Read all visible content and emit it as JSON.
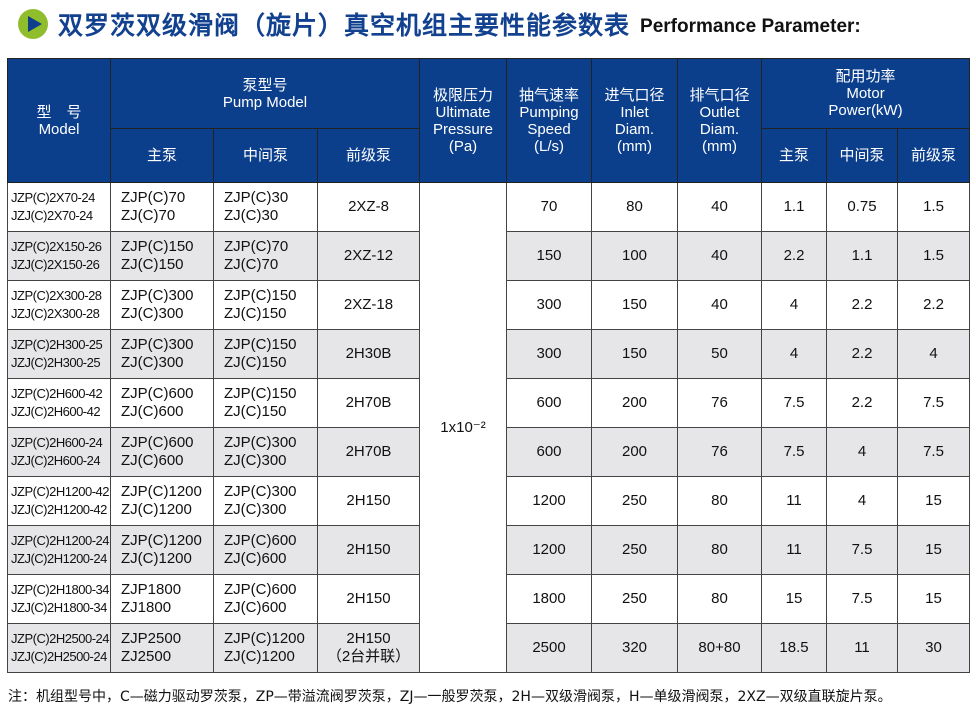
{
  "title": {
    "cn": "双罗茨双级滑阀（旋片）真空机组主要性能参数表",
    "en": "Performance Parameter:",
    "icon": "play-circle-icon"
  },
  "header": {
    "model": {
      "cn": "型　号",
      "en": "Model"
    },
    "pump_model": {
      "cn": "泵型号",
      "en": "Pump Model"
    },
    "main": "主泵",
    "mid": "中间泵",
    "fore": "前级泵",
    "pressure": {
      "cn": "极限压力",
      "en": "Ultimate",
      "en2": "Pressure",
      "unit": "(Pa)"
    },
    "speed": {
      "cn": "抽气速率",
      "en": "Pumping",
      "en2": "Speed",
      "unit": "(L/s)"
    },
    "inlet": {
      "cn": "进气口径",
      "en": "Inlet",
      "en2": "Diam.",
      "unit": "(mm)"
    },
    "outlet": {
      "cn": "排气口径",
      "en": "Outlet",
      "en2": "Diam.",
      "unit": "(mm)"
    },
    "power": {
      "cn": "配用功率",
      "en": "Motor",
      "en2": "Power(kW)"
    }
  },
  "pressure_value": "1x10⁻²",
  "rows": [
    {
      "model": [
        "JZP(C)2X70-24",
        "JZJ(C)2X70-24"
      ],
      "main": [
        "ZJP(C)70",
        "ZJ(C)70"
      ],
      "mid": [
        "ZJP(C)30",
        "ZJ(C)30"
      ],
      "fore": [
        "2XZ-8",
        ""
      ],
      "speed": "70",
      "inlet": "80",
      "outlet": "40",
      "p1": "1.1",
      "p2": "0.75",
      "p3": "1.5"
    },
    {
      "model": [
        "JZP(C)2X150-26",
        "JZJ(C)2X150-26"
      ],
      "main": [
        "ZJP(C)150",
        "ZJ(C)150"
      ],
      "mid": [
        "ZJP(C)70",
        "ZJ(C)70"
      ],
      "fore": [
        "2XZ-12",
        ""
      ],
      "speed": "150",
      "inlet": "100",
      "outlet": "40",
      "p1": "2.2",
      "p2": "1.1",
      "p3": "1.5"
    },
    {
      "model": [
        "JZP(C)2X300-28",
        "JZJ(C)2X300-28"
      ],
      "main": [
        "ZJP(C)300",
        "ZJ(C)300"
      ],
      "mid": [
        "ZJP(C)150",
        "ZJ(C)150"
      ],
      "fore": [
        "2XZ-18",
        ""
      ],
      "speed": "300",
      "inlet": "150",
      "outlet": "40",
      "p1": "4",
      "p2": "2.2",
      "p3": "2.2"
    },
    {
      "model": [
        "JZP(C)2H300-25",
        "JZJ(C)2H300-25"
      ],
      "main": [
        "ZJP(C)300",
        "ZJ(C)300"
      ],
      "mid": [
        "ZJP(C)150",
        "ZJ(C)150"
      ],
      "fore": [
        "2H30B",
        ""
      ],
      "speed": "300",
      "inlet": "150",
      "outlet": "50",
      "p1": "4",
      "p2": "2.2",
      "p3": "4"
    },
    {
      "model": [
        "JZP(C)2H600-42",
        "JZJ(C)2H600-42"
      ],
      "main": [
        "ZJP(C)600",
        "ZJ(C)600"
      ],
      "mid": [
        "ZJP(C)150",
        "ZJ(C)150"
      ],
      "fore": [
        "2H70B",
        ""
      ],
      "speed": "600",
      "inlet": "200",
      "outlet": "76",
      "p1": "7.5",
      "p2": "2.2",
      "p3": "7.5"
    },
    {
      "model": [
        "JZP(C)2H600-24",
        "JZJ(C)2H600-24"
      ],
      "main": [
        "ZJP(C)600",
        "ZJ(C)600"
      ],
      "mid": [
        "ZJP(C)300",
        "ZJ(C)300"
      ],
      "fore": [
        "2H70B",
        ""
      ],
      "speed": "600",
      "inlet": "200",
      "outlet": "76",
      "p1": "7.5",
      "p2": "4",
      "p3": "7.5"
    },
    {
      "model": [
        "JZP(C)2H1200-42",
        "JZJ(C)2H1200-42"
      ],
      "main": [
        "ZJP(C)1200",
        "ZJ(C)1200"
      ],
      "mid": [
        "ZJP(C)300",
        "ZJ(C)300"
      ],
      "fore": [
        "2H150",
        ""
      ],
      "speed": "1200",
      "inlet": "250",
      "outlet": "80",
      "p1": "11",
      "p2": "4",
      "p3": "15"
    },
    {
      "model": [
        "JZP(C)2H1200-24",
        "JZJ(C)2H1200-24"
      ],
      "main": [
        "ZJP(C)1200",
        "ZJ(C)1200"
      ],
      "mid": [
        "ZJP(C)600",
        "ZJ(C)600"
      ],
      "fore": [
        "2H150",
        ""
      ],
      "speed": "1200",
      "inlet": "250",
      "outlet": "80",
      "p1": "11",
      "p2": "7.5",
      "p3": "15"
    },
    {
      "model": [
        "JZP(C)2H1800-34",
        "JZJ(C)2H1800-34"
      ],
      "main": [
        "ZJP1800",
        "ZJ1800"
      ],
      "mid": [
        "ZJP(C)600",
        "ZJ(C)600"
      ],
      "fore": [
        "2H150",
        ""
      ],
      "speed": "1800",
      "inlet": "250",
      "outlet": "80",
      "p1": "15",
      "p2": "7.5",
      "p3": "15"
    },
    {
      "model": [
        "JZP(C)2H2500-24",
        "JZJ(C)2H2500-24"
      ],
      "main": [
        "ZJP2500",
        "ZJ2500"
      ],
      "mid": [
        "ZJP(C)1200",
        "ZJ(C)1200"
      ],
      "fore": [
        "2H150",
        "（2台并联）"
      ],
      "speed": "2500",
      "inlet": "320",
      "outlet": "80+80",
      "p1": "18.5",
      "p2": "11",
      "p3": "30"
    }
  ],
  "note": "注：机组型号中，C—磁力驱动罗茨泵，ZP—带溢流阀罗茨泵，ZJ—一般罗茨泵，2H—双级滑阀泵，H—单级滑阀泵，2XZ—双级直联旋片泵。"
}
